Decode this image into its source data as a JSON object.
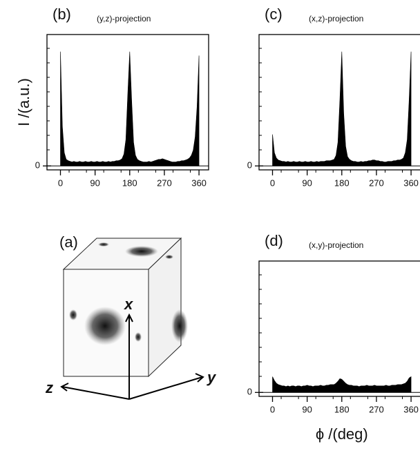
{
  "chart_data": [
    {
      "type": "area",
      "panel_label": "(b)",
      "title": "(y,z)-projection",
      "ylabel": "I /(a.u.)",
      "x": [
        0,
        5,
        10,
        15,
        20,
        25,
        30,
        35,
        40,
        45,
        50,
        55,
        60,
        65,
        70,
        75,
        80,
        85,
        90,
        95,
        100,
        105,
        110,
        115,
        120,
        125,
        130,
        135,
        140,
        145,
        150,
        155,
        160,
        165,
        170,
        175,
        180,
        185,
        190,
        195,
        200,
        205,
        210,
        215,
        220,
        225,
        230,
        235,
        240,
        245,
        250,
        255,
        260,
        265,
        270,
        275,
        280,
        285,
        290,
        295,
        300,
        305,
        310,
        315,
        320,
        325,
        330,
        335,
        340,
        345,
        350,
        355,
        360
      ],
      "values": [
        8.7,
        3.0,
        1.0,
        0.5,
        0.4,
        0.35,
        0.3,
        0.35,
        0.3,
        0.3,
        0.35,
        0.3,
        0.3,
        0.35,
        0.3,
        0.3,
        0.35,
        0.3,
        0.3,
        0.35,
        0.3,
        0.3,
        0.35,
        0.3,
        0.3,
        0.35,
        0.3,
        0.35,
        0.35,
        0.4,
        0.4,
        0.45,
        0.55,
        0.9,
        2.0,
        5.5,
        8.7,
        5.0,
        1.8,
        0.8,
        0.5,
        0.4,
        0.35,
        0.3,
        0.3,
        0.3,
        0.35,
        0.3,
        0.35,
        0.4,
        0.45,
        0.5,
        0.5,
        0.55,
        0.5,
        0.45,
        0.4,
        0.35,
        0.3,
        0.3,
        0.3,
        0.35,
        0.35,
        0.4,
        0.4,
        0.45,
        0.5,
        0.6,
        0.8,
        1.2,
        2.2,
        4.5,
        8.4
      ],
      "color": "#000000",
      "xlim": [
        -35,
        385
      ],
      "ylim": [
        -0.3,
        10
      ],
      "xticks": [
        0,
        90,
        180,
        270,
        360
      ],
      "yticks": [
        0
      ]
    },
    {
      "type": "area",
      "panel_label": "(c)",
      "title": "(x,z)-projection",
      "x": [
        0,
        5,
        10,
        15,
        20,
        25,
        30,
        35,
        40,
        45,
        50,
        55,
        60,
        65,
        70,
        75,
        80,
        85,
        90,
        95,
        100,
        105,
        110,
        115,
        120,
        125,
        130,
        135,
        140,
        145,
        150,
        155,
        160,
        165,
        170,
        175,
        180,
        185,
        190,
        195,
        200,
        205,
        210,
        215,
        220,
        225,
        230,
        235,
        240,
        245,
        250,
        255,
        260,
        265,
        270,
        275,
        280,
        285,
        290,
        295,
        300,
        305,
        310,
        315,
        320,
        325,
        330,
        335,
        340,
        345,
        350,
        355,
        360
      ],
      "values": [
        2.4,
        1.0,
        0.6,
        0.45,
        0.4,
        0.35,
        0.35,
        0.3,
        0.35,
        0.3,
        0.3,
        0.35,
        0.3,
        0.3,
        0.35,
        0.3,
        0.3,
        0.35,
        0.3,
        0.3,
        0.35,
        0.3,
        0.3,
        0.35,
        0.3,
        0.35,
        0.35,
        0.35,
        0.4,
        0.4,
        0.4,
        0.45,
        0.5,
        0.8,
        1.8,
        5.0,
        8.7,
        4.0,
        1.5,
        0.7,
        0.5,
        0.4,
        0.35,
        0.35,
        0.3,
        0.3,
        0.35,
        0.3,
        0.35,
        0.35,
        0.4,
        0.4,
        0.45,
        0.45,
        0.4,
        0.4,
        0.35,
        0.35,
        0.3,
        0.3,
        0.35,
        0.35,
        0.35,
        0.4,
        0.4,
        0.45,
        0.45,
        0.5,
        0.6,
        1.0,
        2.0,
        5.0,
        8.7
      ],
      "color": "#000000",
      "xlim": [
        -35,
        385
      ],
      "ylim": [
        -0.3,
        10
      ],
      "xticks": [
        0,
        90,
        180,
        270,
        360
      ],
      "yticks": [
        0
      ]
    },
    {
      "type": "area",
      "panel_label": "(d)",
      "title": "(x,y)-projection",
      "xlabel": "ϕ /(deg)",
      "x": [
        0,
        5,
        10,
        15,
        20,
        25,
        30,
        35,
        40,
        45,
        50,
        55,
        60,
        65,
        70,
        75,
        80,
        85,
        90,
        95,
        100,
        105,
        110,
        115,
        120,
        125,
        130,
        135,
        140,
        145,
        150,
        155,
        160,
        165,
        170,
        175,
        180,
        185,
        190,
        195,
        200,
        205,
        210,
        215,
        220,
        225,
        230,
        235,
        240,
        245,
        250,
        255,
        260,
        265,
        270,
        275,
        280,
        285,
        290,
        295,
        300,
        305,
        310,
        315,
        320,
        325,
        330,
        335,
        340,
        345,
        350,
        355,
        360
      ],
      "values": [
        1.2,
        0.9,
        0.7,
        0.6,
        0.55,
        0.5,
        0.5,
        0.45,
        0.5,
        0.45,
        0.5,
        0.5,
        0.45,
        0.5,
        0.5,
        0.45,
        0.5,
        0.5,
        0.55,
        0.5,
        0.5,
        0.45,
        0.5,
        0.5,
        0.5,
        0.55,
        0.5,
        0.5,
        0.55,
        0.55,
        0.6,
        0.6,
        0.6,
        0.7,
        0.85,
        1.05,
        1.0,
        0.85,
        0.7,
        0.6,
        0.55,
        0.55,
        0.5,
        0.5,
        0.5,
        0.45,
        0.5,
        0.5,
        0.5,
        0.55,
        0.5,
        0.5,
        0.5,
        0.55,
        0.5,
        0.5,
        0.5,
        0.5,
        0.5,
        0.55,
        0.5,
        0.5,
        0.55,
        0.55,
        0.55,
        0.6,
        0.6,
        0.6,
        0.65,
        0.7,
        0.85,
        1.1,
        1.2
      ],
      "color": "#000000",
      "xlim": [
        -35,
        385
      ],
      "ylim": [
        -0.3,
        10
      ],
      "xticks": [
        0,
        90,
        180,
        270,
        360
      ],
      "yticks": [
        0
      ]
    }
  ],
  "panel_a": {
    "label": "(a)",
    "axis_x": "x",
    "axis_y": "y",
    "axis_z": "z"
  }
}
